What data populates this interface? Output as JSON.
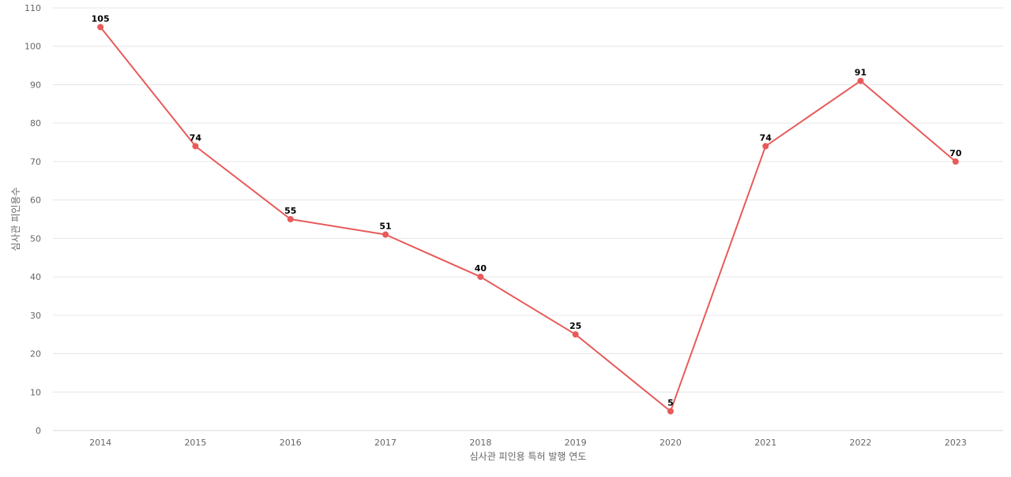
{
  "chart_data": {
    "type": "line",
    "x": [
      "2014",
      "2015",
      "2016",
      "2017",
      "2018",
      "2019",
      "2020",
      "2021",
      "2022",
      "2023"
    ],
    "series": [
      {
        "values": [
          105,
          74,
          55,
          51,
          40,
          25,
          5,
          74,
          91,
          70
        ],
        "color": "#e85a5a"
      }
    ],
    "xlabel": "심사관 피인용 특허 발행 연도",
    "ylabel": "심사관 피인용수",
    "ylim": [
      0,
      110
    ],
    "yticks": [
      0,
      10,
      20,
      30,
      40,
      50,
      60,
      70,
      80,
      90,
      100,
      110
    ],
    "grid": true,
    "data_labels": true
  }
}
